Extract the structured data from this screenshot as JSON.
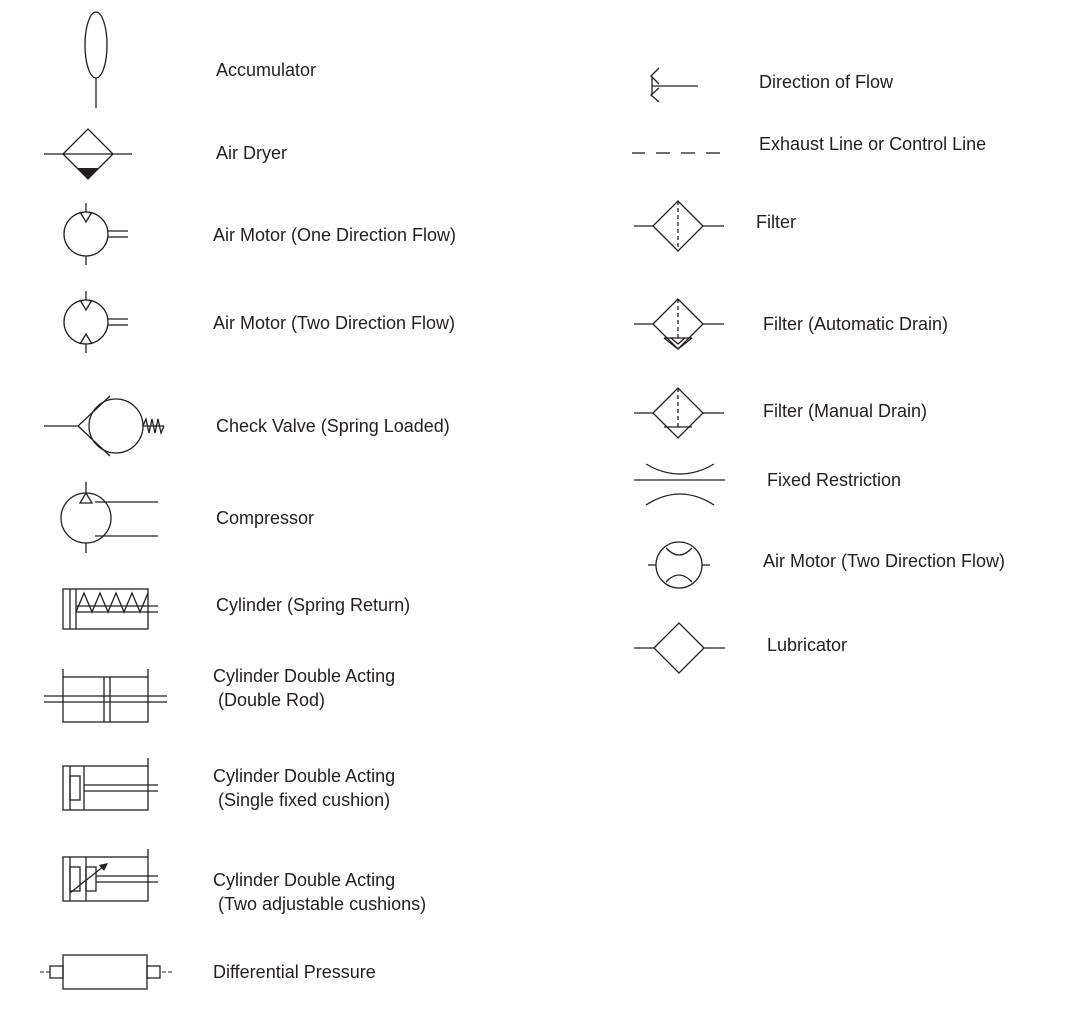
{
  "colors": {
    "ink": "#231f20",
    "background": "#ffffff"
  },
  "left_column": [
    {
      "icon": "accumulator-icon",
      "label": "Accumulator"
    },
    {
      "icon": "air-dryer-icon",
      "label": "Air Dryer"
    },
    {
      "icon": "air-motor-one-direction-icon",
      "label": "Air Motor (One Direction Flow)"
    },
    {
      "icon": "air-motor-two-direction-icon",
      "label": "Air Motor (Two Direction Flow)"
    },
    {
      "icon": "check-valve-spring-loaded-icon",
      "label": "Check Valve (Spring Loaded)"
    },
    {
      "icon": "compressor-icon",
      "label": "Compressor"
    },
    {
      "icon": "cylinder-spring-return-icon",
      "label": "Cylinder (Spring Return)"
    },
    {
      "icon": "cylinder-double-acting-double-rod-icon",
      "label": "Cylinder Double Acting",
      "label2": " (Double Rod)"
    },
    {
      "icon": "cylinder-double-acting-single-fixed-cushion-icon",
      "label": "Cylinder Double Acting",
      "label2": " (Single fixed cushion)"
    },
    {
      "icon": "cylinder-double-acting-two-adjustable-cushions-icon",
      "label": "Cylinder Double Acting",
      "label2": " (Two adjustable cushions)"
    },
    {
      "icon": "differential-pressure-icon",
      "label": "Differential Pressure"
    }
  ],
  "right_column": [
    {
      "icon": "direction-of-flow-icon",
      "label": "Direction of Flow"
    },
    {
      "icon": "exhaust-line-icon",
      "label": "Exhaust Line or Control Line"
    },
    {
      "icon": "filter-icon",
      "label": "Filter"
    },
    {
      "icon": "filter-automatic-drain-icon",
      "label": "Filter (Automatic Drain)"
    },
    {
      "icon": "filter-manual-drain-icon",
      "label": "Filter (Manual Drain)"
    },
    {
      "icon": "fixed-restriction-icon",
      "label": "Fixed Restriction"
    },
    {
      "icon": "air-motor-two-direction-flow-icon",
      "label": "Air Motor (Two Direction Flow)"
    },
    {
      "icon": "lubricator-icon",
      "label": "Lubricator"
    }
  ]
}
